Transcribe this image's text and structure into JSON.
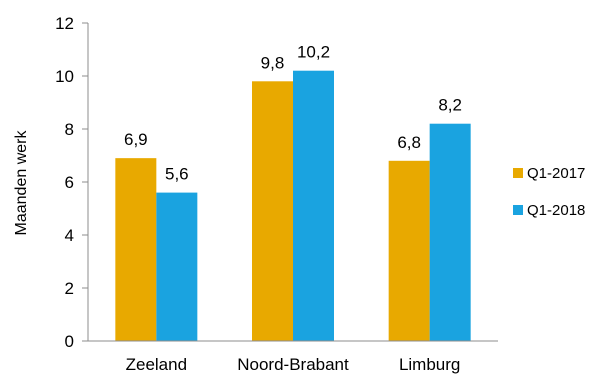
{
  "chart_data": {
    "type": "bar",
    "categories": [
      "Zeeland",
      "Noord-Brabant",
      "Limburg"
    ],
    "series": [
      {
        "name": "Q1-2017",
        "values": [
          6.9,
          9.8,
          6.8
        ],
        "labels": [
          "6,9",
          "9,8",
          "6,8"
        ],
        "color": "#E8A900"
      },
      {
        "name": "Q1-2018",
        "values": [
          5.6,
          10.2,
          8.2
        ],
        "labels": [
          "5,6",
          "10,2",
          "8,2"
        ],
        "color": "#1AA3E0"
      }
    ],
    "ylabel": "Maanden werk",
    "xlabel": "",
    "ylim": [
      0,
      12
    ],
    "yticks": [
      0,
      2,
      4,
      6,
      8,
      10,
      12
    ],
    "grid": false,
    "legend_position": "right"
  }
}
